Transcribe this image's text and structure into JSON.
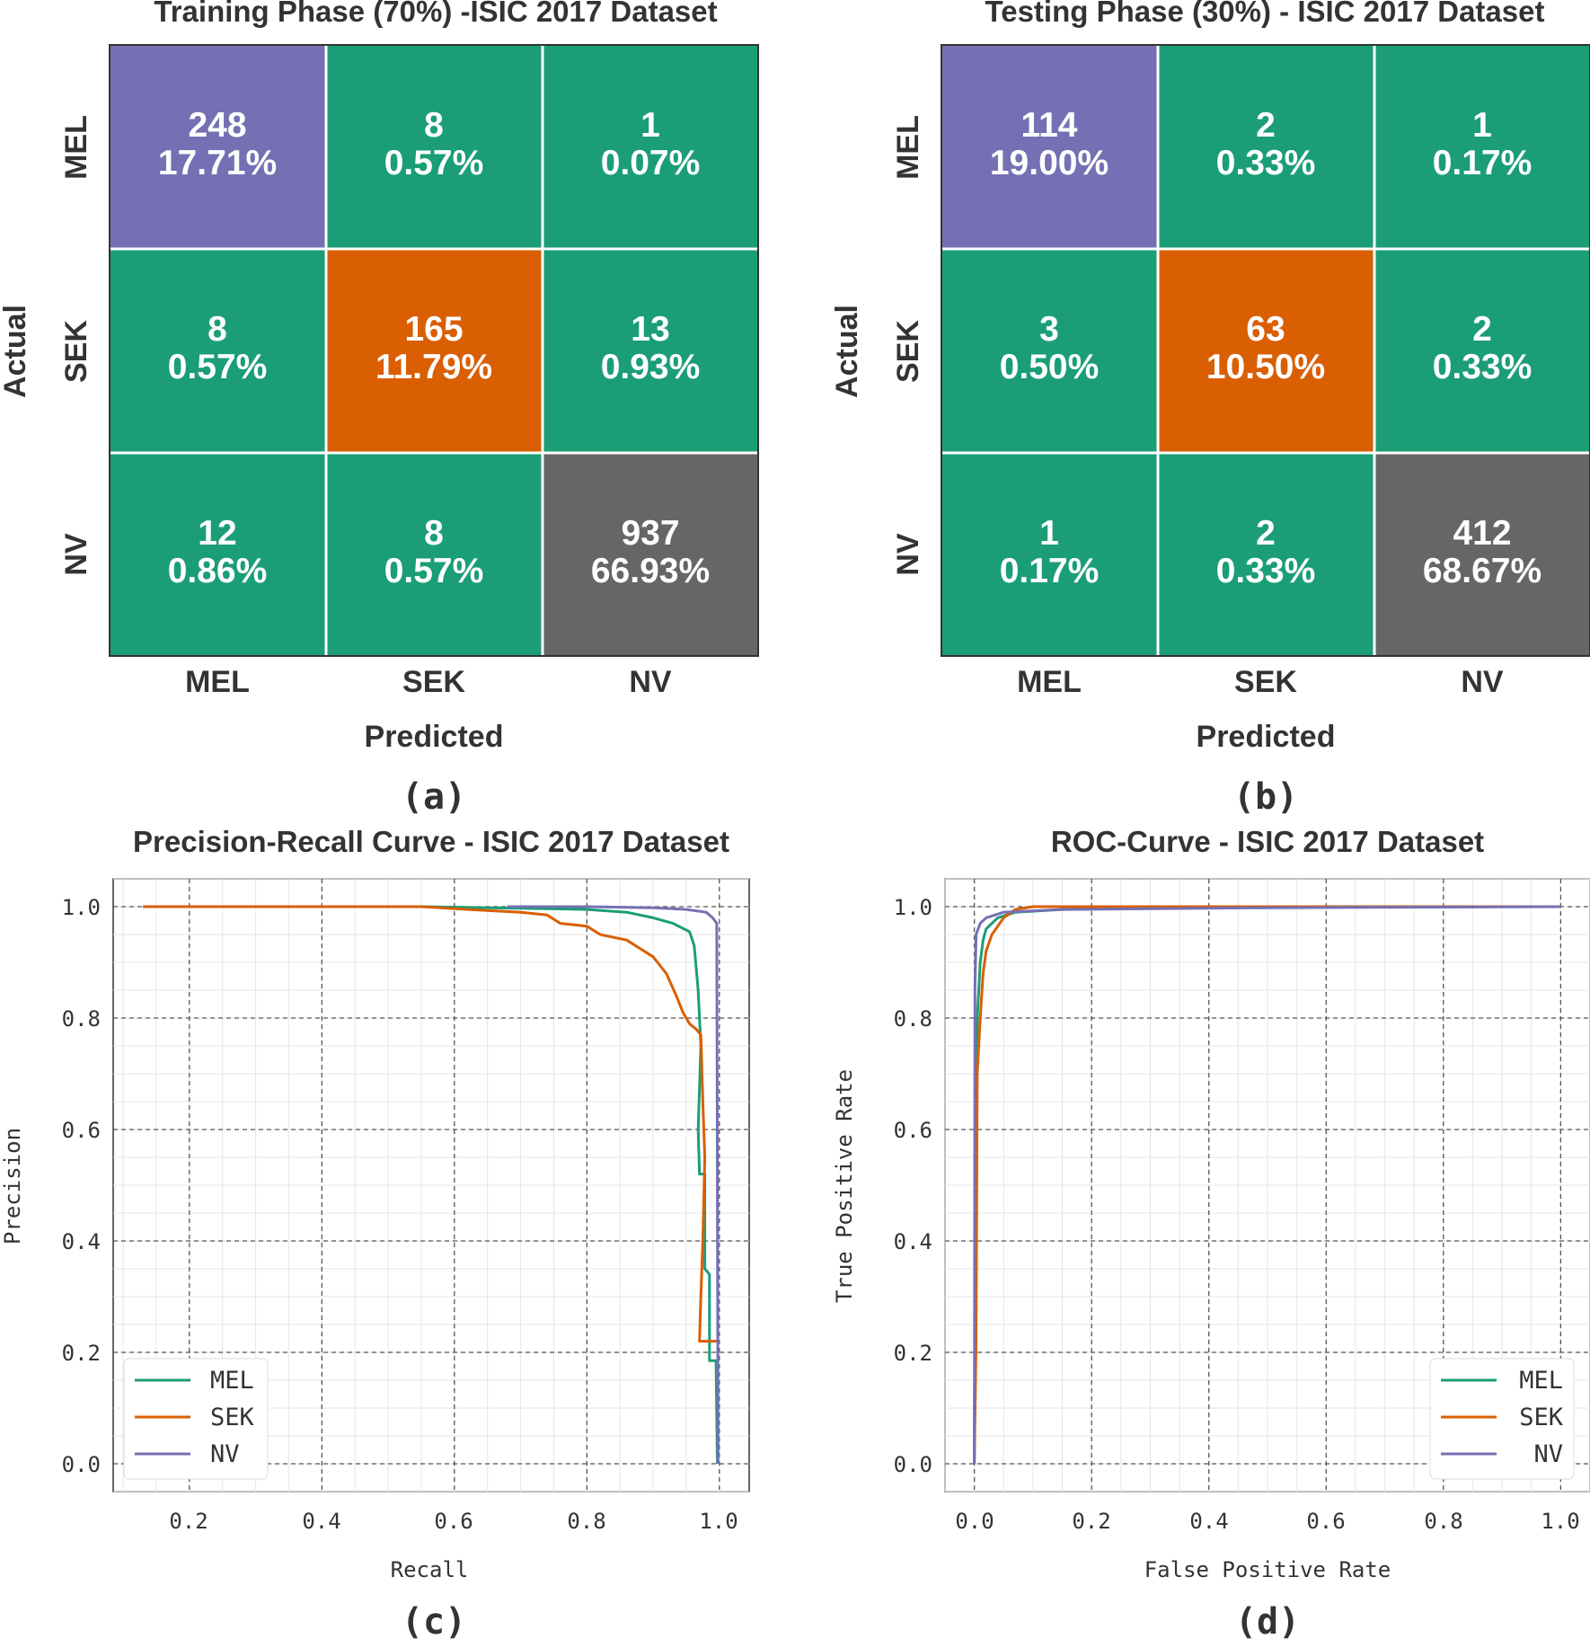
{
  "colors": {
    "green": "#1b9e77",
    "orange": "#d95f02",
    "purple": "#7570b3",
    "gray": "#666666"
  },
  "chart_data": [
    {
      "type": "heatmap",
      "title": "Training Phase (70%) -ISIC 2017 Dataset",
      "xlabel": "Predicted",
      "ylabel": "Actual",
      "caption": "(a)",
      "x_categories": [
        "MEL",
        "SEK",
        "NV"
      ],
      "y_categories": [
        "MEL",
        "SEK",
        "NV"
      ],
      "cells": [
        [
          {
            "count": "248",
            "percent": "17.71%"
          },
          {
            "count": "8",
            "percent": "0.57%"
          },
          {
            "count": "1",
            "percent": "0.07%"
          }
        ],
        [
          {
            "count": "8",
            "percent": "0.57%"
          },
          {
            "count": "165",
            "percent": "11.79%"
          },
          {
            "count": "13",
            "percent": "0.93%"
          }
        ],
        [
          {
            "count": "12",
            "percent": "0.86%"
          },
          {
            "count": "8",
            "percent": "0.57%"
          },
          {
            "count": "937",
            "percent": "66.93%"
          }
        ]
      ]
    },
    {
      "type": "heatmap",
      "title": "Testing Phase (30%) - ISIC 2017 Dataset",
      "xlabel": "Predicted",
      "ylabel": "Actual",
      "caption": "(b)",
      "x_categories": [
        "MEL",
        "SEK",
        "NV"
      ],
      "y_categories": [
        "MEL",
        "SEK",
        "NV"
      ],
      "cells": [
        [
          {
            "count": "114",
            "percent": "19.00%"
          },
          {
            "count": "2",
            "percent": "0.33%"
          },
          {
            "count": "1",
            "percent": "0.17%"
          }
        ],
        [
          {
            "count": "3",
            "percent": "0.50%"
          },
          {
            "count": "63",
            "percent": "10.50%"
          },
          {
            "count": "2",
            "percent": "0.33%"
          }
        ],
        [
          {
            "count": "1",
            "percent": "0.17%"
          },
          {
            "count": "2",
            "percent": "0.33%"
          },
          {
            "count": "412",
            "percent": "68.67%"
          }
        ]
      ]
    },
    {
      "type": "line",
      "title": "Precision-Recall Curve - ISIC 2017 Dataset",
      "xlabel": "Recall",
      "ylabel": "Precision",
      "caption": "(c)",
      "xlim": [
        0.085,
        1.045
      ],
      "ylim": [
        -0.05,
        1.05
      ],
      "xticks": [
        "0.2",
        "0.4",
        "0.6",
        "0.8",
        "1.0"
      ],
      "yticks": [
        "0.0",
        "0.2",
        "0.4",
        "0.6",
        "0.8",
        "1.0"
      ],
      "legend_position": "lower-left",
      "series": [
        {
          "name": "MEL",
          "color": "#1b9e77",
          "points": [
            [
              0.13,
              1.0
            ],
            [
              0.55,
              1.0
            ],
            [
              0.8,
              0.995
            ],
            [
              0.86,
              0.99
            ],
            [
              0.9,
              0.98
            ],
            [
              0.93,
              0.97
            ],
            [
              0.955,
              0.955
            ],
            [
              0.962,
              0.93
            ],
            [
              0.968,
              0.85
            ],
            [
              0.972,
              0.75
            ],
            [
              0.968,
              0.6
            ],
            [
              0.97,
              0.52
            ],
            [
              0.978,
              0.52
            ],
            [
              0.978,
              0.35
            ],
            [
              0.985,
              0.34
            ],
            [
              0.985,
              0.185
            ],
            [
              0.995,
              0.185
            ],
            [
              0.997,
              0.0
            ]
          ]
        },
        {
          "name": "SEK",
          "color": "#d95f02",
          "points": [
            [
              0.13,
              1.0
            ],
            [
              0.55,
              1.0
            ],
            [
              0.62,
              0.995
            ],
            [
              0.7,
              0.99
            ],
            [
              0.74,
              0.985
            ],
            [
              0.76,
              0.97
            ],
            [
              0.8,
              0.965
            ],
            [
              0.82,
              0.95
            ],
            [
              0.86,
              0.94
            ],
            [
              0.9,
              0.91
            ],
            [
              0.92,
              0.88
            ],
            [
              0.935,
              0.84
            ],
            [
              0.945,
              0.81
            ],
            [
              0.955,
              0.79
            ],
            [
              0.965,
              0.78
            ],
            [
              0.972,
              0.77
            ],
            [
              0.975,
              0.65
            ],
            [
              0.978,
              0.55
            ],
            [
              0.975,
              0.4
            ],
            [
              0.972,
              0.3
            ],
            [
              0.97,
              0.22
            ],
            [
              0.985,
              0.22
            ],
            [
              0.997,
              0.22
            ]
          ]
        },
        {
          "name": "NV",
          "color": "#7570b3",
          "points": [
            [
              0.68,
              1.0
            ],
            [
              0.8,
              1.0
            ],
            [
              0.9,
              0.998
            ],
            [
              0.95,
              0.995
            ],
            [
              0.98,
              0.99
            ],
            [
              0.99,
              0.98
            ],
            [
              0.996,
              0.97
            ],
            [
              0.997,
              0.5
            ],
            [
              0.998,
              0.0
            ]
          ]
        }
      ]
    },
    {
      "type": "line",
      "title": "ROC-Curve - ISIC 2017 Dataset",
      "xlabel": "False Positive Rate",
      "ylabel": "True Positive Rate",
      "caption": "(d)",
      "xlim": [
        -0.05,
        1.05
      ],
      "ylim": [
        -0.05,
        1.05
      ],
      "xticks": [
        "0.0",
        "0.2",
        "0.4",
        "0.6",
        "0.8",
        "1.0"
      ],
      "yticks": [
        "0.0",
        "0.2",
        "0.4",
        "0.6",
        "0.8",
        "1.0"
      ],
      "legend_position": "lower-right",
      "series": [
        {
          "name": "MEL",
          "color": "#1b9e77",
          "points": [
            [
              0.0,
              0.0
            ],
            [
              0.002,
              0.5
            ],
            [
              0.005,
              0.8
            ],
            [
              0.01,
              0.9
            ],
            [
              0.015,
              0.94
            ],
            [
              0.02,
              0.96
            ],
            [
              0.04,
              0.98
            ],
            [
              0.07,
              0.99
            ],
            [
              0.15,
              0.995
            ],
            [
              0.5,
              1.0
            ],
            [
              1.0,
              1.0
            ]
          ]
        },
        {
          "name": "SEK",
          "color": "#d95f02",
          "points": [
            [
              0.0,
              0.0
            ],
            [
              0.003,
              0.22
            ],
            [
              0.005,
              0.7
            ],
            [
              0.01,
              0.8
            ],
            [
              0.015,
              0.88
            ],
            [
              0.02,
              0.92
            ],
            [
              0.03,
              0.95
            ],
            [
              0.05,
              0.98
            ],
            [
              0.07,
              0.995
            ],
            [
              0.1,
              1.0
            ],
            [
              1.0,
              1.0
            ]
          ]
        },
        {
          "name": "NV",
          "color": "#7570b3",
          "points": [
            [
              0.0,
              0.0
            ],
            [
              0.001,
              0.85
            ],
            [
              0.003,
              0.95
            ],
            [
              0.01,
              0.97
            ],
            [
              0.02,
              0.98
            ],
            [
              0.05,
              0.99
            ],
            [
              0.15,
              0.995
            ],
            [
              0.5,
              0.998
            ],
            [
              1.0,
              1.0
            ]
          ]
        }
      ]
    }
  ]
}
